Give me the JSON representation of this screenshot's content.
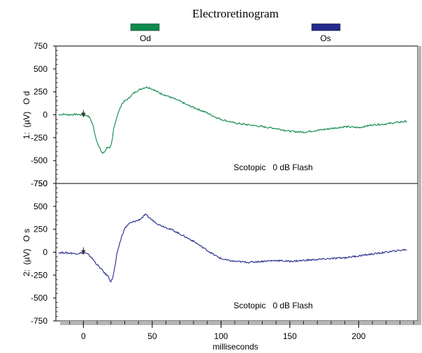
{
  "chart_data": {
    "type": "line",
    "title": "Electroretinogram",
    "legend": [
      {
        "name": "Od",
        "color": "#0e8a4c"
      },
      {
        "name": "Os",
        "color": "#232a8a"
      }
    ],
    "legend_placement": "top",
    "xlabel": "milliseconds",
    "xlim": [
      -20,
      243
    ],
    "x_ticks": [
      0,
      50,
      100,
      150,
      200
    ],
    "x_tick_labels": [
      "0",
      "50",
      "100",
      "150",
      "200"
    ],
    "flash_marker_x": 0,
    "grid": false,
    "panels": [
      {
        "name": "Od",
        "ylabel": "1:  (µV)   O d",
        "ylim": [
          -750,
          750
        ],
        "y_ticks": [
          750,
          500,
          250,
          0,
          -250,
          -500,
          -750
        ],
        "y_tick_labels": [
          "750",
          "500",
          "250",
          "0",
          "-250",
          "-500",
          "-750"
        ],
        "annotation": "Scotopic   0 dB Flash",
        "color": "#0e8a4c",
        "series": {
          "x": [
            -18,
            -15,
            -10,
            -5,
            -2,
            0,
            3,
            5,
            7,
            9,
            11,
            13,
            14,
            15,
            16,
            17,
            18,
            19,
            20,
            21,
            22,
            24,
            26,
            28,
            30,
            33,
            36,
            40,
            44,
            46,
            48,
            50,
            55,
            60,
            65,
            70,
            75,
            80,
            85,
            90,
            95,
            100,
            110,
            120,
            130,
            140,
            150,
            160,
            170,
            180,
            190,
            200,
            210,
            220,
            230,
            235
          ],
          "y": [
            0,
            5,
            0,
            5,
            0,
            0,
            -10,
            -40,
            -120,
            -250,
            -340,
            -400,
            -420,
            -410,
            -390,
            -360,
            -350,
            -370,
            -340,
            -270,
            -150,
            -40,
            50,
            120,
            150,
            180,
            230,
            270,
            295,
            300,
            295,
            280,
            240,
            210,
            180,
            150,
            110,
            80,
            50,
            20,
            -20,
            -50,
            -90,
            -110,
            -130,
            -150,
            -180,
            -190,
            -170,
            -150,
            -130,
            -140,
            -110,
            -100,
            -80,
            -70
          ]
        }
      },
      {
        "name": "Os",
        "ylabel": "2:  (µV)   O s",
        "ylim": [
          -750,
          750
        ],
        "y_ticks": [
          750,
          500,
          250,
          0,
          -250,
          -500,
          -750
        ],
        "y_tick_labels": [
          "750",
          "500",
          "250",
          "0",
          "-250",
          "-500",
          "-750"
        ],
        "annotation": "Scotopic   0 dB Flash",
        "color": "#232a8a",
        "series": {
          "x": [
            -18,
            -15,
            -10,
            -5,
            -2,
            0,
            3,
            6,
            9,
            12,
            14,
            16,
            18,
            19,
            20,
            21,
            22,
            23,
            24,
            26,
            28,
            30,
            33,
            36,
            40,
            43,
            45,
            47,
            50,
            55,
            60,
            65,
            70,
            75,
            80,
            85,
            90,
            95,
            100,
            105,
            110,
            120,
            130,
            140,
            150,
            160,
            170,
            180,
            190,
            200,
            210,
            220,
            230,
            235
          ],
          "y": [
            -5,
            -5,
            -10,
            -15,
            -10,
            -5,
            -20,
            -60,
            -120,
            -170,
            -200,
            -240,
            -260,
            -300,
            -320,
            -290,
            -230,
            -150,
            -50,
            80,
            180,
            260,
            310,
            330,
            350,
            380,
            410,
            390,
            350,
            300,
            270,
            240,
            200,
            160,
            120,
            70,
            20,
            -30,
            -70,
            -90,
            -100,
            -110,
            -100,
            -90,
            -100,
            -90,
            -80,
            -70,
            -60,
            -40,
            -20,
            0,
            20,
            30
          ]
        }
      }
    ]
  }
}
